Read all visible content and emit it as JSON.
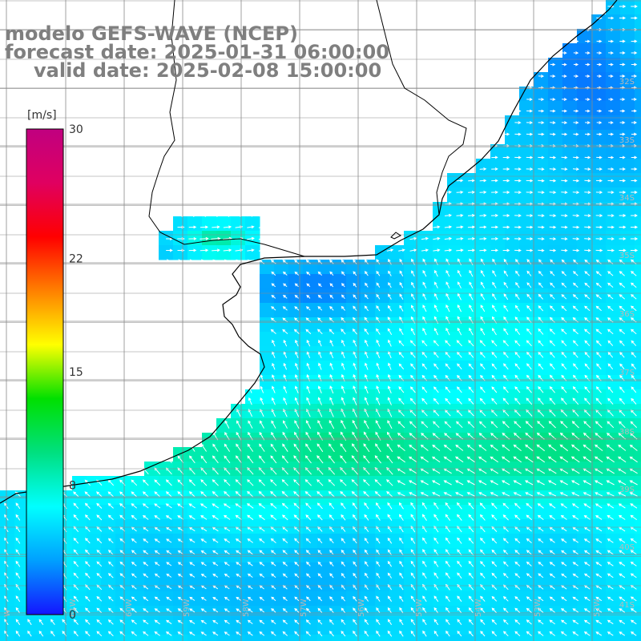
{
  "title": {
    "model": "modelo GEFS-WAVE (NCEP)",
    "forecast": "forecast date: 2025-01-31 06:00:00",
    "valid": "valid date: 2025-02-08 15:00:00"
  },
  "colorbar": {
    "unit": "[m/s]",
    "ticks": [
      "30",
      "22",
      "15",
      "8",
      "0"
    ],
    "tick_values": [
      30,
      22,
      15,
      8,
      0
    ],
    "range": [
      0,
      30
    ],
    "colors": [
      "#1414ff",
      "#00a0ff",
      "#00ffff",
      "#00e080",
      "#00e000",
      "#ffff00",
      "#ff8000",
      "#ff0000",
      "#e00060",
      "#c00080"
    ]
  },
  "axes": {
    "lat_labels": [
      "32S",
      "33S",
      "34S",
      "35S",
      "36S",
      "37S",
      "38S",
      "39S",
      "40S",
      "41S"
    ],
    "lon_labels": [
      "W",
      "61W",
      "60W",
      "59W",
      "58W",
      "57W",
      "56W",
      "55W",
      "54W",
      "53W",
      "52W"
    ]
  },
  "colors": {
    "land": "#ffffff",
    "grid": "#8a8a8a",
    "coast": "#000000",
    "arrows": "#ffffff",
    "title": "#7f7f7f"
  }
}
